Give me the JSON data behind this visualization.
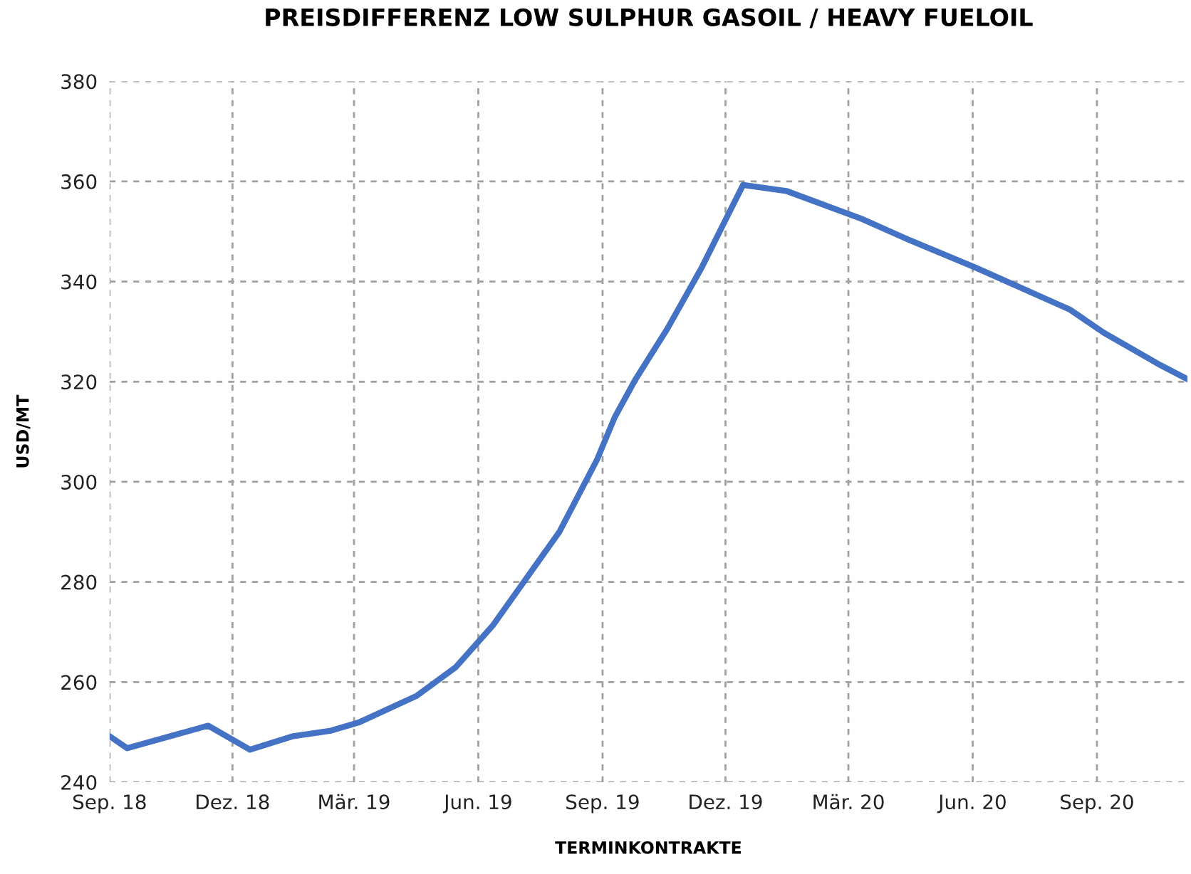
{
  "chart_data": {
    "type": "line",
    "title": "PREISDIFFERENZ LOW SULPHUR GASOIL / HEAVY FUELOIL",
    "xlabel": "TERMINKONTRAKTE",
    "ylabel": "USD/MT",
    "x": [
      "2018-09-01",
      "2018-09-14",
      "2018-11-13",
      "2018-12-14",
      "2019-01-15",
      "2019-02-12",
      "2019-03-05",
      "2019-04-16",
      "2019-05-15",
      "2019-06-12",
      "2019-07-06",
      "2019-07-31",
      "2019-08-28",
      "2019-09-10",
      "2019-09-25",
      "2019-10-19",
      "2019-11-13",
      "2019-12-14",
      "2020-01-15",
      "2020-03-11",
      "2020-04-15",
      "2020-06-03",
      "2020-08-12",
      "2020-09-06",
      "2020-10-18",
      "2020-11-07"
    ],
    "series": [
      {
        "color": "#4472c4",
        "values": [
          249.2,
          246.8,
          251.3,
          246.5,
          249.2,
          250.3,
          252.0,
          257.2,
          262.9,
          271.4,
          280.5,
          290.0,
          304.5,
          312.9,
          320.3,
          330.6,
          342.6,
          359.3,
          358.1,
          352.5,
          348.3,
          342.8,
          334.4,
          329.8,
          323.3,
          320.5
        ]
      }
    ],
    "xlim": [
      "2018-09-01",
      "2020-11-07"
    ],
    "xticks": [
      {
        "value": "2018-09-01",
        "label": "Sep. 18"
      },
      {
        "value": "2018-12-01",
        "label": "Dez. 18"
      },
      {
        "value": "2019-03-01",
        "label": "Mär. 19"
      },
      {
        "value": "2019-06-01",
        "label": "Jun. 19"
      },
      {
        "value": "2019-09-01",
        "label": "Sep. 19"
      },
      {
        "value": "2019-12-01",
        "label": "Dez. 19"
      },
      {
        "value": "2020-03-01",
        "label": "Mär. 20"
      },
      {
        "value": "2020-06-01",
        "label": "Jun. 20"
      },
      {
        "value": "2020-09-01",
        "label": "Sep. 20"
      }
    ],
    "ylim": [
      240,
      380
    ],
    "yticks": [
      240,
      260,
      280,
      300,
      320,
      340,
      360,
      380
    ],
    "grid": true,
    "marker": "none",
    "line_style": "solid"
  }
}
